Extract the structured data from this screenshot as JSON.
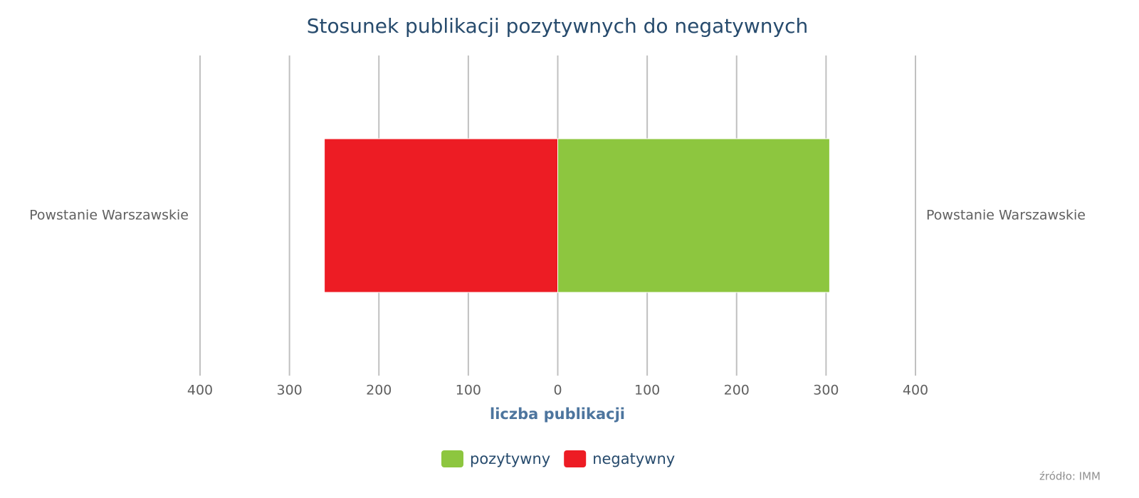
{
  "chart_data": {
    "type": "butterfly",
    "title": "Stosunek publikacji pozytywnych do negatywnych",
    "x_label": "liczba publikacji",
    "categories": [
      "Powstanie Warszawskie"
    ],
    "series": [
      {
        "name": "pozytywny",
        "color": "#8dc63f",
        "values": [
          304
        ]
      },
      {
        "name": "negatywny",
        "color": "#ed1c24",
        "values": [
          -261
        ]
      }
    ],
    "xlim": [
      -400,
      400
    ],
    "xticks": [
      {
        "value": -400,
        "label": "400"
      },
      {
        "value": -300,
        "label": "300"
      },
      {
        "value": -200,
        "label": "200"
      },
      {
        "value": -100,
        "label": "100"
      },
      0,
      100,
      200,
      300,
      400
    ],
    "grid": true,
    "legend": "bottom",
    "credits": "źródło: IMM"
  }
}
